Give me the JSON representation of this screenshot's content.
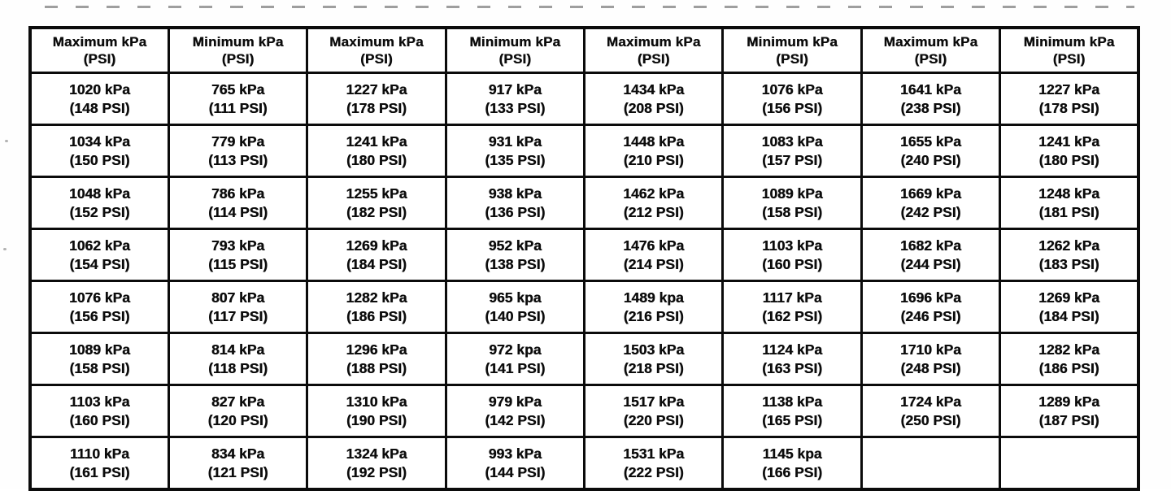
{
  "table": {
    "headers": [
      {
        "title": "Maximum kPa",
        "sub": "(PSI)"
      },
      {
        "title": "Minimum kPa",
        "sub": "(PSI)"
      },
      {
        "title": "Maximum kPa",
        "sub": "(PSI)"
      },
      {
        "title": "Minimum kPa",
        "sub": "(PSI)"
      },
      {
        "title": "Maximum kPa",
        "sub": "(PSI)"
      },
      {
        "title": "Minimum kPa",
        "sub": "(PSI)"
      },
      {
        "title": "Maximum kPa",
        "sub": "(PSI)"
      },
      {
        "title": "Minimum kPa",
        "sub": "(PSI)"
      }
    ],
    "rows": [
      [
        {
          "kpa": "1020 kPa",
          "psi": "(148 PSI)"
        },
        {
          "kpa": "765 kPa",
          "psi": "(111 PSI)"
        },
        {
          "kpa": "1227 kPa",
          "psi": "(178 PSI)"
        },
        {
          "kpa": "917 kPa",
          "psi": "(133 PSI)"
        },
        {
          "kpa": "1434 kPa",
          "psi": "(208 PSI)"
        },
        {
          "kpa": "1076 kPa",
          "psi": "(156 PSI)"
        },
        {
          "kpa": "1641 kPa",
          "psi": "(238 PSI)"
        },
        {
          "kpa": "1227 kPa",
          "psi": "(178 PSI)"
        }
      ],
      [
        {
          "kpa": "1034 kPa",
          "psi": "(150 PSI)"
        },
        {
          "kpa": "779 kPa",
          "psi": "(113 PSI)"
        },
        {
          "kpa": "1241 kPa",
          "psi": "(180 PSI)"
        },
        {
          "kpa": "931 kPa",
          "psi": "(135 PSI)"
        },
        {
          "kpa": "1448 kPa",
          "psi": "(210 PSI)"
        },
        {
          "kpa": "1083 kPa",
          "psi": "(157 PSI)"
        },
        {
          "kpa": "1655 kPa",
          "psi": "(240 PSI)"
        },
        {
          "kpa": "1241 kPa",
          "psi": "(180 PSI)"
        }
      ],
      [
        {
          "kpa": "1048 kPa",
          "psi": "(152 PSI)"
        },
        {
          "kpa": "786 kPa",
          "psi": "(114 PSI)"
        },
        {
          "kpa": "1255 kPa",
          "psi": "(182 PSI)"
        },
        {
          "kpa": "938 kPa",
          "psi": "(136 PSI)"
        },
        {
          "kpa": "1462 kPa",
          "psi": "(212 PSI)"
        },
        {
          "kpa": "1089 kPa",
          "psi": "(158 PSI)"
        },
        {
          "kpa": "1669 kPa",
          "psi": "(242 PSI)"
        },
        {
          "kpa": "1248 kPa",
          "psi": "(181 PSI)"
        }
      ],
      [
        {
          "kpa": "1062 kPa",
          "psi": "(154 PSI)"
        },
        {
          "kpa": "793 kPa",
          "psi": "(115 PSI)"
        },
        {
          "kpa": "1269 kPa",
          "psi": "(184 PSI)"
        },
        {
          "kpa": "952 kPa",
          "psi": "(138 PSI)"
        },
        {
          "kpa": "1476 kPa",
          "psi": "(214 PSI)"
        },
        {
          "kpa": "1103 kPa",
          "psi": "(160 PSI)"
        },
        {
          "kpa": "1682 kPa",
          "psi": "(244 PSI)"
        },
        {
          "kpa": "1262 kPa",
          "psi": "(183 PSI)"
        }
      ],
      [
        {
          "kpa": "1076 kPa",
          "psi": "(156 PSI)"
        },
        {
          "kpa": "807 kPa",
          "psi": "(117 PSI)"
        },
        {
          "kpa": "1282 kPa",
          "psi": "(186 PSI)"
        },
        {
          "kpa": "965 kpa",
          "psi": "(140 PSI)"
        },
        {
          "kpa": "1489 kpa",
          "psi": "(216 PSI)"
        },
        {
          "kpa": "1117 kPa",
          "psi": "(162 PSI)"
        },
        {
          "kpa": "1696 kPa",
          "psi": "(246 PSI)"
        },
        {
          "kpa": "1269 kPa",
          "psi": "(184 PSI)"
        }
      ],
      [
        {
          "kpa": "1089 kPa",
          "psi": "(158 PSI)"
        },
        {
          "kpa": "814 kPa",
          "psi": "(118 PSI)"
        },
        {
          "kpa": "1296 kPa",
          "psi": "(188 PSI)"
        },
        {
          "kpa": "972 kpa",
          "psi": "(141 PSI)"
        },
        {
          "kpa": "1503 kPa",
          "psi": "(218 PSI)"
        },
        {
          "kpa": "1124 kPa",
          "psi": "(163 PSI)"
        },
        {
          "kpa": "1710 kPa",
          "psi": "(248 PSI)"
        },
        {
          "kpa": "1282 kPa",
          "psi": "(186 PSI)"
        }
      ],
      [
        {
          "kpa": "1103 kPa",
          "psi": "(160 PSI)"
        },
        {
          "kpa": "827 kPa",
          "psi": "(120 PSI)"
        },
        {
          "kpa": "1310 kPa",
          "psi": "(190 PSI)"
        },
        {
          "kpa": "979 kPa",
          "psi": "(142 PSI)"
        },
        {
          "kpa": "1517 kPa",
          "psi": "(220 PSI)"
        },
        {
          "kpa": "1138 kPa",
          "psi": "(165 PSI)"
        },
        {
          "kpa": "1724 kPa",
          "psi": "(250 PSI)"
        },
        {
          "kpa": "1289 kPa",
          "psi": "(187 PSI)"
        }
      ],
      [
        {
          "kpa": "1110 kPa",
          "psi": "(161 PSI)"
        },
        {
          "kpa": "834 kPa",
          "psi": "(121 PSI)"
        },
        {
          "kpa": "1324 kPa",
          "psi": "(192 PSI)"
        },
        {
          "kpa": "993 kPa",
          "psi": "(144 PSI)"
        },
        {
          "kpa": "1531 kPa",
          "psi": "(222 PSI)"
        },
        {
          "kpa": "1145 kpa",
          "psi": "(166 PSI)"
        },
        null,
        null
      ]
    ]
  }
}
